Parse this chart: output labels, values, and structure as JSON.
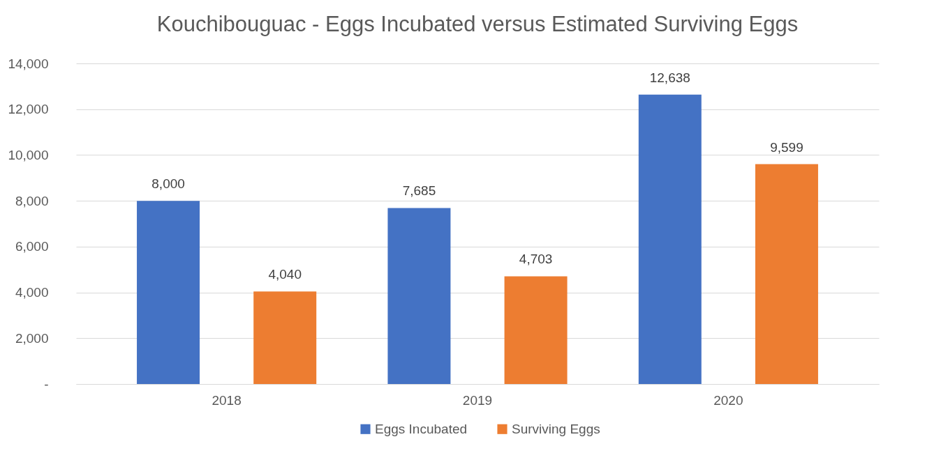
{
  "chart_data": {
    "type": "bar",
    "title": "Kouchibouguac - Eggs Incubated versus Estimated Surviving Eggs",
    "categories": [
      "2018",
      "2019",
      "2020"
    ],
    "series": [
      {
        "name": "Eggs Incubated",
        "color": "#4472c4",
        "values": [
          8000,
          7685,
          12638
        ],
        "value_labels": [
          "8,000",
          "7,685",
          "12,638"
        ]
      },
      {
        "name": "Surviving Eggs",
        "color": "#ed7d31",
        "values": [
          4040,
          4703,
          9599
        ],
        "value_labels": [
          "4,040",
          "4,703",
          "9,599"
        ]
      }
    ],
    "ylim": [
      0,
      14000
    ],
    "yticks": [
      {
        "value": 0,
        "label": "-"
      },
      {
        "value": 2000,
        "label": "2,000"
      },
      {
        "value": 4000,
        "label": "4,000"
      },
      {
        "value": 6000,
        "label": "6,000"
      },
      {
        "value": 8000,
        "label": "8,000"
      },
      {
        "value": 10000,
        "label": "10,000"
      },
      {
        "value": 12000,
        "label": "12,000"
      },
      {
        "value": 14000,
        "label": "14,000"
      }
    ],
    "grid": "y",
    "legend": "bottom"
  }
}
